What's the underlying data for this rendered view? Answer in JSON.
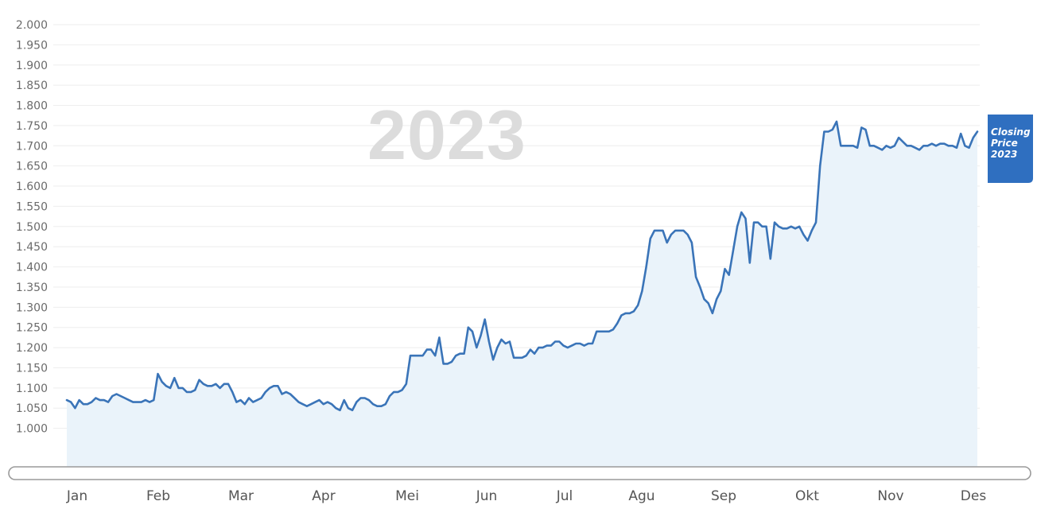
{
  "watermark": "2023",
  "badge": {
    "lines": [
      "Closing",
      "Price",
      "2023"
    ]
  },
  "colors": {
    "line": "#3a74b8",
    "fill": "#eaf3fa",
    "badge": "#2f6fc0",
    "grid": "#eeeeee",
    "scrollbar": "#9a9a9a"
  },
  "chart_data": {
    "type": "area",
    "title": "",
    "xlabel": "",
    "ylabel": "",
    "ylim": [
      950,
      2000
    ],
    "grid": true,
    "legend": "none",
    "y_ticks": [
      "2.000",
      "1.950",
      "1.900",
      "1.850",
      "1.800",
      "1.750",
      "1.700",
      "1.650",
      "1.600",
      "1.550",
      "1.500",
      "1.450",
      "1.400",
      "1.350",
      "1.300",
      "1.250",
      "1.200",
      "1.150",
      "1.100",
      "1.050",
      "1.000"
    ],
    "y_tick_values": [
      2000,
      1950,
      1900,
      1850,
      1800,
      1750,
      1700,
      1650,
      1600,
      1550,
      1500,
      1450,
      1400,
      1350,
      1300,
      1250,
      1200,
      1150,
      1100,
      1050,
      1000
    ],
    "x_ticks": [
      "Jan",
      "Feb",
      "Mar",
      "Apr",
      "Mei",
      "Jun",
      "Jul",
      "Agu",
      "Sep",
      "Okt",
      "Nov",
      "Des"
    ],
    "series": [
      {
        "values": [
          1070,
          1065,
          1050,
          1070,
          1060,
          1060,
          1065,
          1075,
          1070,
          1070,
          1065,
          1080,
          1085,
          1080,
          1075,
          1070,
          1065,
          1065,
          1065,
          1070,
          1065,
          1070,
          1135,
          1115,
          1105,
          1100,
          1125,
          1100,
          1100,
          1090,
          1090,
          1095,
          1120,
          1110,
          1105,
          1105,
          1110,
          1100,
          1110,
          1110,
          1090,
          1065,
          1070,
          1060,
          1075,
          1065,
          1070,
          1075,
          1090,
          1100,
          1105,
          1105,
          1085,
          1090,
          1085,
          1075,
          1065,
          1060,
          1055,
          1060,
          1065,
          1070,
          1060,
          1065,
          1060,
          1050,
          1045,
          1070,
          1050,
          1045,
          1065,
          1075,
          1075,
          1070,
          1060,
          1055,
          1055,
          1060,
          1080,
          1090,
          1090,
          1095,
          1110,
          1180,
          1180,
          1180,
          1180,
          1195,
          1195,
          1180,
          1225,
          1160,
          1160,
          1165,
          1180,
          1185,
          1185,
          1250,
          1240,
          1200,
          1230,
          1270,
          1215,
          1170,
          1200,
          1220,
          1210,
          1215,
          1175,
          1175,
          1175,
          1180,
          1195,
          1185,
          1200,
          1200,
          1205,
          1205,
          1215,
          1215,
          1205,
          1200,
          1205,
          1210,
          1210,
          1205,
          1210,
          1210,
          1240,
          1240,
          1240,
          1240,
          1245,
          1260,
          1280,
          1285,
          1285,
          1290,
          1305,
          1340,
          1400,
          1470,
          1490,
          1490,
          1490,
          1460,
          1480,
          1490,
          1490,
          1490,
          1480,
          1460,
          1375,
          1350,
          1320,
          1310,
          1285,
          1320,
          1340,
          1395,
          1380,
          1440,
          1500,
          1535,
          1520,
          1410,
          1510,
          1510,
          1500,
          1500,
          1420,
          1510,
          1500,
          1495,
          1495,
          1500,
          1495,
          1500,
          1480,
          1465,
          1490,
          1510,
          1650,
          1735,
          1735,
          1740,
          1760,
          1700,
          1700,
          1700,
          1700,
          1695,
          1745,
          1740,
          1700,
          1700,
          1695,
          1690,
          1700,
          1695,
          1700,
          1720,
          1710,
          1700,
          1700,
          1695,
          1690,
          1700,
          1700,
          1705,
          1700,
          1705,
          1705,
          1700,
          1700,
          1695,
          1730,
          1700,
          1695,
          1720,
          1735
        ]
      }
    ]
  }
}
